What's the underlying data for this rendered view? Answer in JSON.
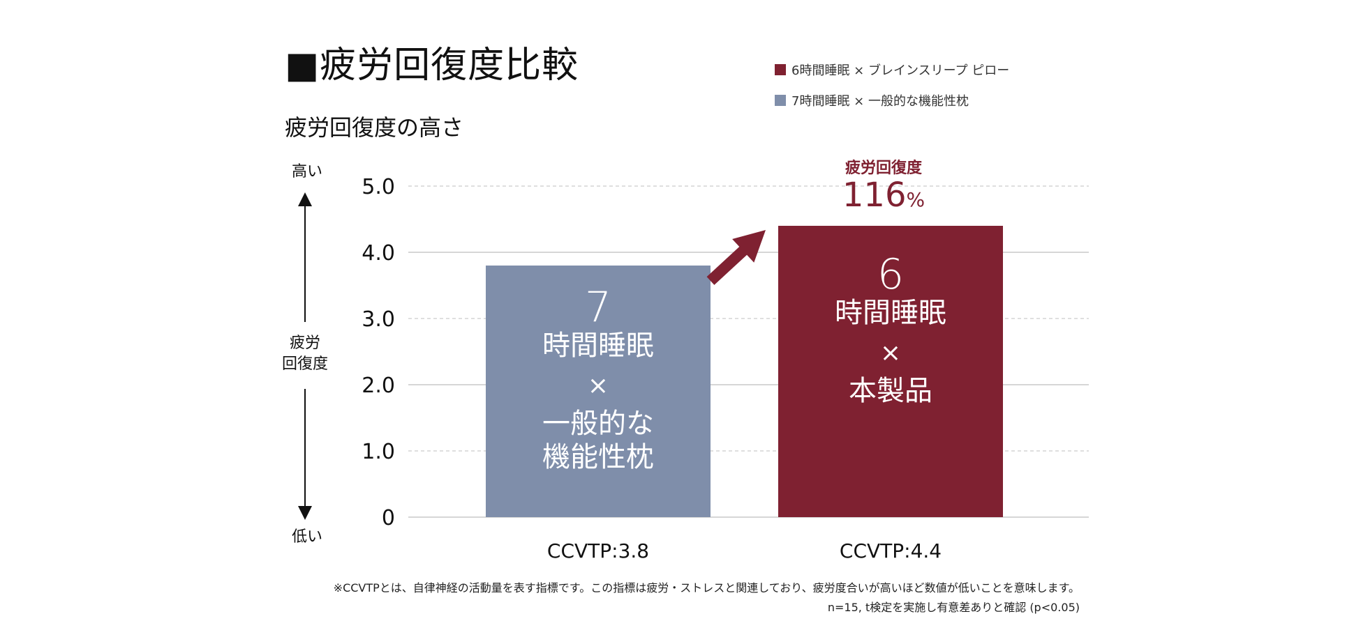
{
  "header": {
    "title": "■疲労回復度比較",
    "subtitle": "疲労回復度の高さ"
  },
  "legend": {
    "items": [
      {
        "label": "6時間睡眠 × ブレインスリープ ピロー",
        "color": "#7f2131"
      },
      {
        "label": "7時間睡眠 × 一般的な機能性枕",
        "color": "#7f8eaa"
      }
    ]
  },
  "axis": {
    "high_label": "高い",
    "low_label": "低い",
    "mid_label_line1": "疲労",
    "mid_label_line2": "回復度"
  },
  "annotation": {
    "label": "疲労回復度",
    "value": "116",
    "unit": "%",
    "color": "#7f2131"
  },
  "chart_data": {
    "type": "bar",
    "ylim": [
      0,
      5
    ],
    "yticks": [
      "0",
      "1.0",
      "2.0",
      "3.0",
      "4.0",
      "5.0"
    ],
    "grid": true,
    "legend_position": "top-right",
    "categories": [
      "CCVTP:3.8",
      "CCVTP:4.4"
    ],
    "values": [
      3.8,
      4.4
    ],
    "colors": [
      "#7f8eaa",
      "#7f2131"
    ],
    "bar_labels": [
      {
        "number": "7",
        "lines": [
          "時間睡眠",
          "×",
          "一般的な",
          "機能性枕"
        ]
      },
      {
        "number": "6",
        "lines": [
          "時間睡眠",
          "×",
          "本製品"
        ]
      }
    ]
  },
  "footnote": {
    "line1": "※CCVTPとは、自律神経の活動量を表す指標です。この指標は疲労・ストレスと関連しており、疲労度合いが高いほど数値が低いことを意味します。",
    "line2": "n=15, t検定を実施し有意差ありと確認 (p<0.05)"
  }
}
